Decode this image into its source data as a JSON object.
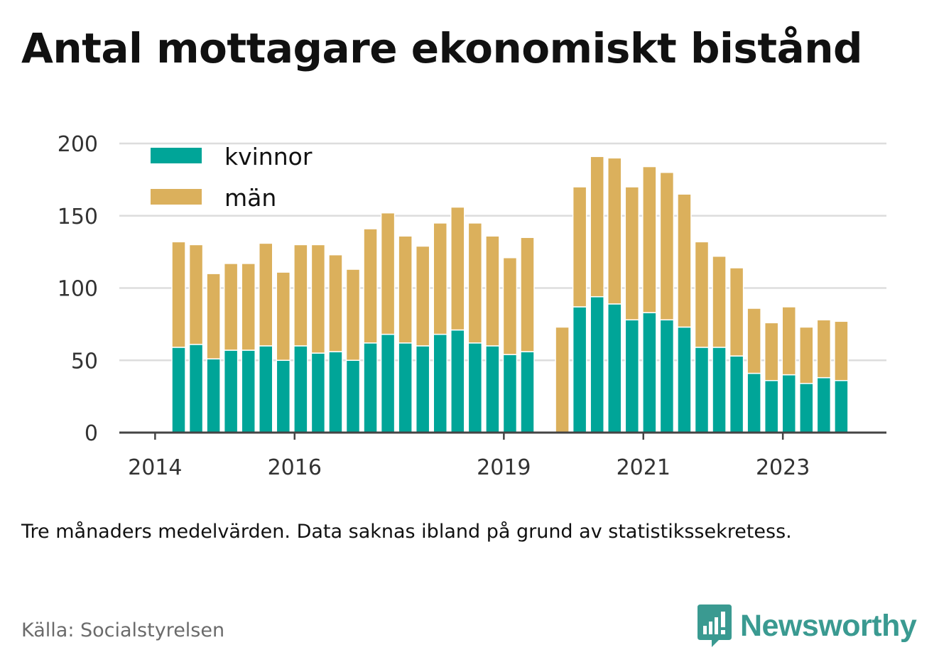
{
  "title": "Antal mottagare ekonomiskt bistånd",
  "note": "Tre månaders medelvärden. Data saknas ibland på grund av statistikssekretess.",
  "source": "Källa: Socialstyrelsen",
  "brand": "Newsworthy",
  "colors": {
    "kvinnor": "#00a598",
    "man": "#dbb05c",
    "grid": "#dddddd",
    "axis": "#444444",
    "brand": "#3a9a91"
  },
  "chart_data": {
    "type": "bar",
    "stacked": true,
    "ylim": [
      0,
      200
    ],
    "y_ticks": [
      0,
      50,
      100,
      150,
      200
    ],
    "x_tick_labels": [
      "2014",
      "2016",
      "2019",
      "2021",
      "2023"
    ],
    "grid": true,
    "legend_position": "top-left",
    "series": [
      {
        "name": "kvinnor",
        "values": [
          59,
          61,
          51,
          57,
          57,
          60,
          50,
          60,
          55,
          56,
          50,
          62,
          68,
          62,
          60,
          68,
          71,
          62,
          60,
          54,
          56,
          null,
          0,
          87,
          94,
          89,
          78,
          83,
          78,
          73,
          59,
          59,
          53,
          41,
          36,
          40,
          34,
          38,
          36
        ]
      },
      {
        "name": "män",
        "values": [
          73,
          69,
          59,
          60,
          60,
          71,
          61,
          70,
          75,
          67,
          63,
          79,
          84,
          74,
          69,
          77,
          85,
          83,
          76,
          67,
          79,
          null,
          73,
          83,
          97,
          101,
          92,
          101,
          102,
          92,
          73,
          63,
          61,
          45,
          40,
          47,
          39,
          40,
          41
        ]
      }
    ]
  }
}
